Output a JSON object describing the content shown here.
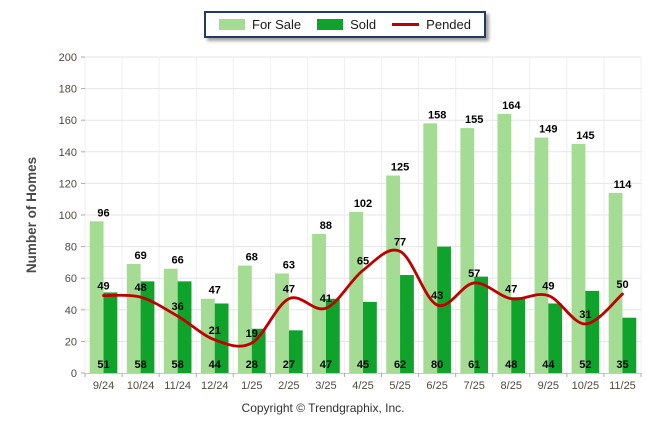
{
  "legend": {
    "items": [
      {
        "id": "for-sale",
        "label": "For Sale",
        "swatch": "rect",
        "color": "#A3DC92"
      },
      {
        "id": "sold",
        "label": "Sold",
        "swatch": "rect",
        "color": "#0FA32B"
      },
      {
        "id": "pended",
        "label": "Pended",
        "swatch": "line",
        "color": "#C00000"
      }
    ]
  },
  "chart_data": {
    "type": "bar",
    "categories": [
      "9/24",
      "10/24",
      "11/24",
      "12/24",
      "1/25",
      "2/25",
      "3/25",
      "4/25",
      "5/25",
      "6/25",
      "7/25",
      "8/25",
      "9/25",
      "10/25",
      "11/25"
    ],
    "series": [
      {
        "name": "For Sale",
        "type": "bar",
        "color": "#A3DC92",
        "values": [
          96,
          69,
          66,
          47,
          68,
          63,
          88,
          102,
          125,
          158,
          155,
          164,
          149,
          145,
          114
        ]
      },
      {
        "name": "Sold",
        "type": "bar",
        "color": "#0FA32B",
        "values": [
          51,
          58,
          58,
          44,
          28,
          27,
          47,
          45,
          62,
          80,
          61,
          48,
          44,
          52,
          35
        ]
      },
      {
        "name": "Pended",
        "type": "line",
        "color": "#C00000",
        "values": [
          49,
          48,
          36,
          21,
          19,
          47,
          41,
          65,
          77,
          43,
          57,
          47,
          49,
          31,
          50
        ]
      }
    ],
    "title": "",
    "xlabel": "",
    "ylabel": "Number of Homes",
    "ylim": [
      0,
      200
    ],
    "ytick_step": 20,
    "grid": true,
    "legend_position": "top"
  },
  "footer": {
    "copyright": "Copyright © Trendgraphix, Inc."
  }
}
